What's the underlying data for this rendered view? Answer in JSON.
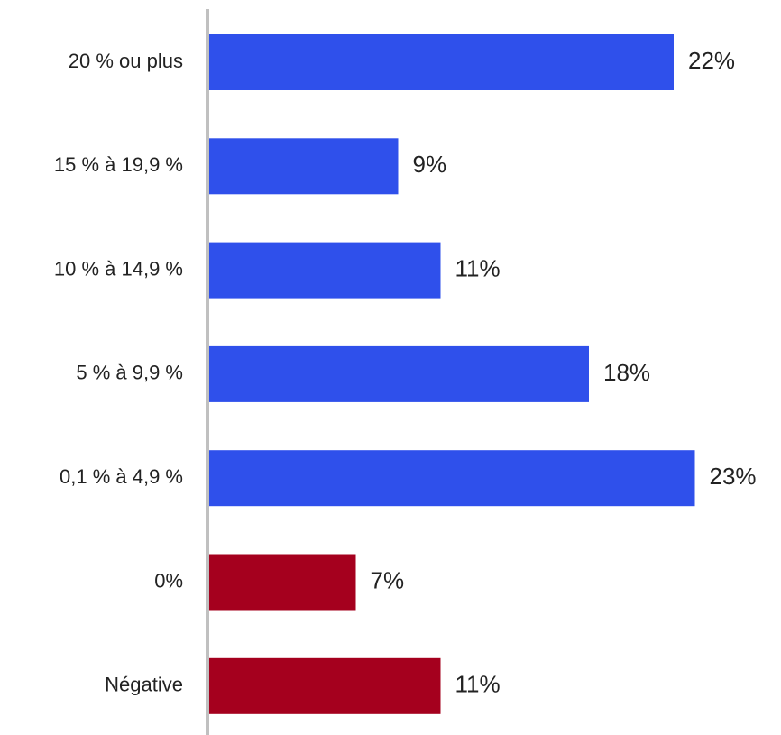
{
  "chart_data": {
    "type": "bar",
    "orientation": "horizontal",
    "categories": [
      "20 % ou plus",
      "15 % à 19,9 %",
      "10 % à 14,9 %",
      "5 % à 9,9 %",
      "0,1 % à 4,9 %",
      "0%",
      "Négative"
    ],
    "values": [
      22,
      9,
      11,
      18,
      23,
      7,
      11
    ],
    "value_labels": [
      "22%",
      "9%",
      "11%",
      "18%",
      "23%",
      "7%",
      "11%"
    ],
    "bar_colors": [
      "#2f50eb",
      "#2f50eb",
      "#2f50eb",
      "#2f50eb",
      "#2f50eb",
      "#a5001e",
      "#a5001e"
    ],
    "axis_color": "#c0c0c0",
    "xlim": [
      0,
      25
    ],
    "grid": false,
    "legend": "none",
    "title": "",
    "xlabel": "",
    "ylabel": ""
  }
}
